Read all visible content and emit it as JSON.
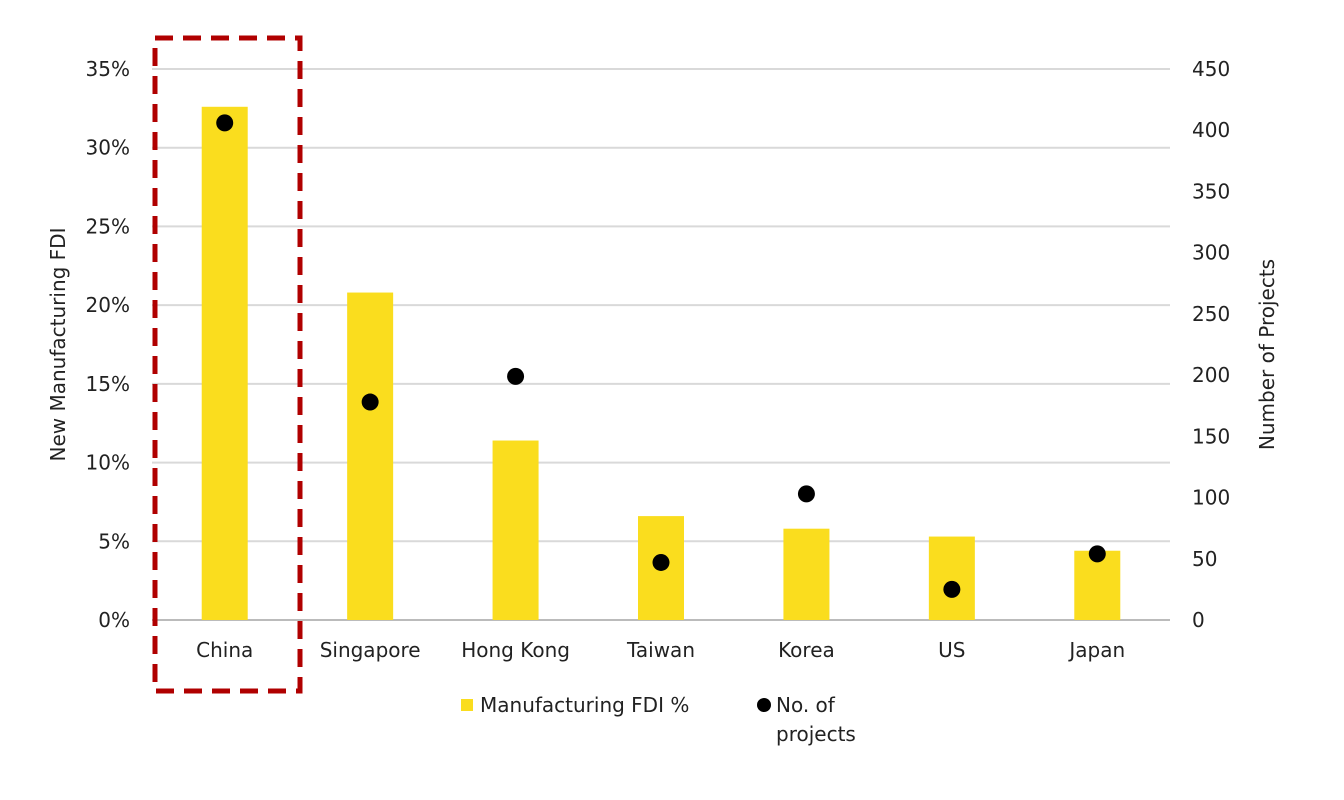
{
  "chart_data": {
    "type": "bar+scatter",
    "categories": [
      "China",
      "Singapore",
      "Hong Kong",
      "Taiwan",
      "Korea",
      "US",
      "Japan"
    ],
    "series": [
      {
        "name": "Manufacturing FDI %",
        "type": "bar",
        "axis": "left",
        "unit": "%",
        "values": [
          32.6,
          20.8,
          11.4,
          6.6,
          5.8,
          5.3,
          4.4
        ],
        "color": "#FADD1E"
      },
      {
        "name": "No. of projects",
        "type": "scatter",
        "axis": "right",
        "values": [
          406,
          178,
          199,
          47,
          103,
          25,
          54
        ],
        "color": "#000000"
      }
    ],
    "ylabel": "New Manufacturing FDI",
    "ylabel_right": "Number of Projects",
    "ylim": [
      0,
      35
    ],
    "ylim_right": [
      0,
      450
    ],
    "yticks": [
      "0%",
      "5%",
      "10%",
      "15%",
      "20%",
      "25%",
      "30%",
      "35%"
    ],
    "yticks_right": [
      "0",
      "50",
      "100",
      "150",
      "200",
      "250",
      "300",
      "350",
      "400",
      "450"
    ],
    "grid": true,
    "legend_position": "bottom",
    "legend": [
      "Manufacturing FDI %",
      "No. of",
      "projects"
    ],
    "highlight": {
      "category": "China",
      "style": "dashed box",
      "color": "#B00000"
    }
  }
}
